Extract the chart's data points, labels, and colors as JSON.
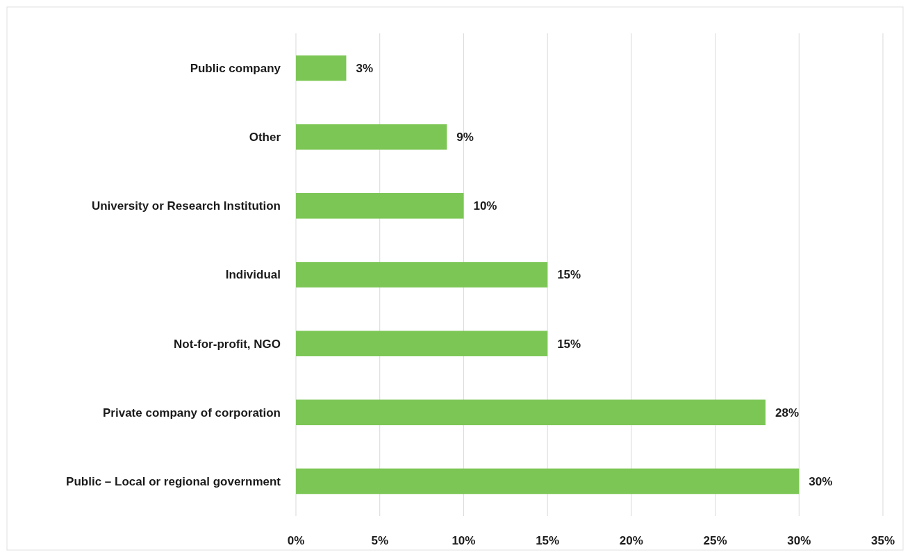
{
  "chart_data": {
    "type": "bar",
    "orientation": "horizontal",
    "categories": [
      "Public company",
      "Other",
      "University or Research Institution",
      "Individual",
      "Not-for-profit, NGO",
      "Private company of corporation",
      "Public – Local or regional government"
    ],
    "values": [
      3,
      9,
      10,
      15,
      15,
      28,
      30
    ],
    "value_labels": [
      "3%",
      "9%",
      "10%",
      "15%",
      "15%",
      "28%",
      "30%"
    ],
    "color": "#7cc655",
    "xlim": [
      0,
      35
    ],
    "xticks": [
      {
        "value": 0,
        "label": "0%"
      },
      {
        "value": 5,
        "label": "5%"
      },
      {
        "value": 10,
        "label": "10%"
      },
      {
        "value": 15,
        "label": "15%"
      },
      {
        "value": 20,
        "label": "20%"
      },
      {
        "value": 25,
        "label": "25%"
      },
      {
        "value": 30,
        "label": "30%"
      },
      {
        "value": 35,
        "label": "35%"
      }
    ],
    "grid": "x"
  }
}
